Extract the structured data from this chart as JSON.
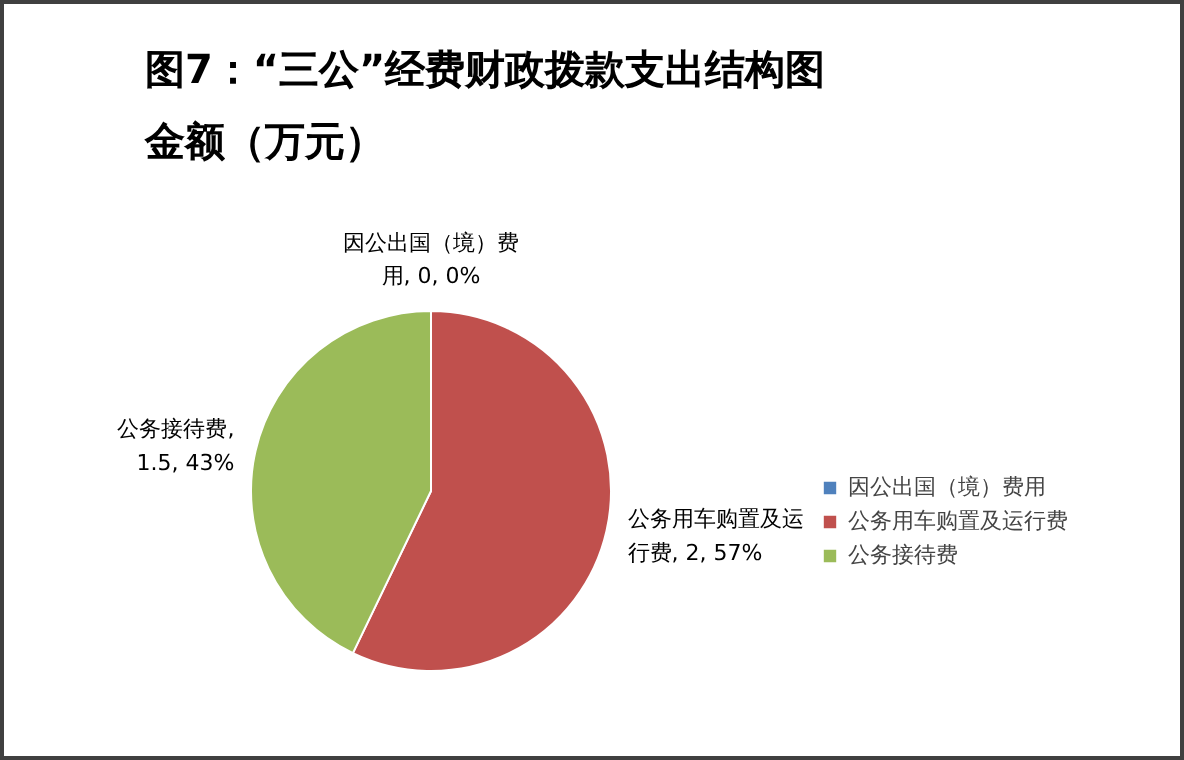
{
  "chart_data": {
    "type": "pie",
    "title": "图7：“三公”经费财政拨款支出结构图",
    "subtitle": "金额（万元）",
    "categories": [
      "因公出国（境）费用",
      "公务用车购置及运行费",
      "公务接待费"
    ],
    "values": [
      0,
      2,
      1.5
    ],
    "colors": [
      "#4f81bd",
      "#c0504d",
      "#9bbb59"
    ],
    "value_labels": [
      "因公出国（境）费用, 0, 0%",
      "公务用车购置及运行费, 2, 57%",
      "公务接待费, 1.5, 43%"
    ],
    "legend": "right"
  }
}
